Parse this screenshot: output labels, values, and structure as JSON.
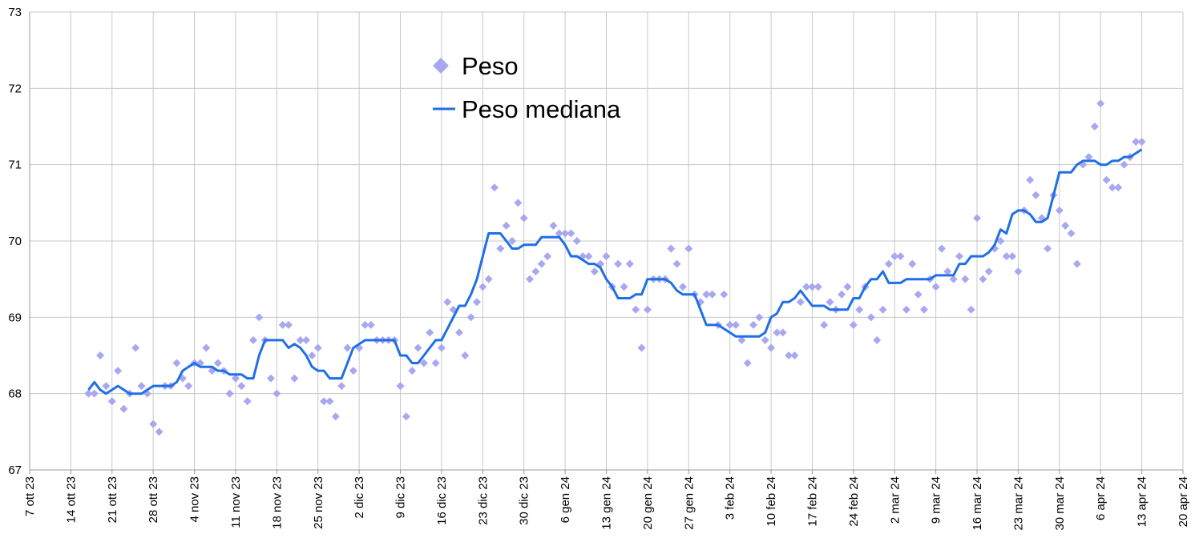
{
  "chart_data": {
    "type": "combo",
    "x": [
      "2023-10-17",
      "2023-10-18",
      "2023-10-19",
      "2023-10-20",
      "2023-10-21",
      "2023-10-22",
      "2023-10-23",
      "2023-10-24",
      "2023-10-25",
      "2023-10-26",
      "2023-10-27",
      "2023-10-28",
      "2023-10-29",
      "2023-10-30",
      "2023-10-31",
      "2023-11-01",
      "2023-11-02",
      "2023-11-03",
      "2023-11-04",
      "2023-11-05",
      "2023-11-06",
      "2023-11-07",
      "2023-11-08",
      "2023-11-09",
      "2023-11-10",
      "2023-11-11",
      "2023-11-12",
      "2023-11-13",
      "2023-11-14",
      "2023-11-15",
      "2023-11-16",
      "2023-11-17",
      "2023-11-18",
      "2023-11-19",
      "2023-11-20",
      "2023-11-21",
      "2023-11-22",
      "2023-11-23",
      "2023-11-24",
      "2023-11-25",
      "2023-11-26",
      "2023-11-27",
      "2023-11-28",
      "2023-11-29",
      "2023-11-30",
      "2023-12-01",
      "2023-12-02",
      "2023-12-03",
      "2023-12-04",
      "2023-12-05",
      "2023-12-06",
      "2023-12-07",
      "2023-12-08",
      "2023-12-09",
      "2023-12-10",
      "2023-12-11",
      "2023-12-12",
      "2023-12-13",
      "2023-12-14",
      "2023-12-15",
      "2023-12-16",
      "2023-12-17",
      "2023-12-18",
      "2023-12-19",
      "2023-12-20",
      "2023-12-21",
      "2023-12-22",
      "2023-12-23",
      "2023-12-24",
      "2023-12-25",
      "2023-12-26",
      "2023-12-27",
      "2023-12-28",
      "2023-12-29",
      "2023-12-30",
      "2023-12-31",
      "2024-01-01",
      "2024-01-02",
      "2024-01-03",
      "2024-01-04",
      "2024-01-05",
      "2024-01-06",
      "2024-01-07",
      "2024-01-08",
      "2024-01-09",
      "2024-01-10",
      "2024-01-11",
      "2024-01-12",
      "2024-01-13",
      "2024-01-14",
      "2024-01-15",
      "2024-01-16",
      "2024-01-17",
      "2024-01-18",
      "2024-01-19",
      "2024-01-20",
      "2024-01-21",
      "2024-01-22",
      "2024-01-23",
      "2024-01-24",
      "2024-01-25",
      "2024-01-26",
      "2024-01-27",
      "2024-01-28",
      "2024-01-29",
      "2024-01-30",
      "2024-01-31",
      "2024-02-01",
      "2024-02-02",
      "2024-02-03",
      "2024-02-04",
      "2024-02-05",
      "2024-02-06",
      "2024-02-07",
      "2024-02-08",
      "2024-02-09",
      "2024-02-10",
      "2024-02-11",
      "2024-02-12",
      "2024-02-13",
      "2024-02-14",
      "2024-02-15",
      "2024-02-16",
      "2024-02-17",
      "2024-02-18",
      "2024-02-19",
      "2024-02-20",
      "2024-02-21",
      "2024-02-22",
      "2024-02-23",
      "2024-02-24",
      "2024-02-25",
      "2024-02-26",
      "2024-02-27",
      "2024-02-28",
      "2024-02-29",
      "2024-03-01",
      "2024-03-02",
      "2024-03-03",
      "2024-03-04",
      "2024-03-05",
      "2024-03-06",
      "2024-03-07",
      "2024-03-08",
      "2024-03-09",
      "2024-03-10",
      "2024-03-11",
      "2024-03-12",
      "2024-03-13",
      "2024-03-14",
      "2024-03-15",
      "2024-03-16",
      "2024-03-17",
      "2024-03-18",
      "2024-03-19",
      "2024-03-20",
      "2024-03-21",
      "2024-03-22",
      "2024-03-23",
      "2024-03-24",
      "2024-03-25",
      "2024-03-26",
      "2024-03-27",
      "2024-03-28",
      "2024-03-29",
      "2024-03-30",
      "2024-03-31",
      "2024-04-01",
      "2024-04-02",
      "2024-04-03",
      "2024-04-04",
      "2024-04-05",
      "2024-04-06",
      "2024-04-07",
      "2024-04-08",
      "2024-04-09",
      "2024-04-10",
      "2024-04-11",
      "2024-04-12",
      "2024-04-13"
    ],
    "series": [
      {
        "name": "Peso",
        "type": "scatter",
        "color": "#a8a8f2",
        "values": [
          68.0,
          68.0,
          68.5,
          68.1,
          67.9,
          68.3,
          67.8,
          68.0,
          68.6,
          68.1,
          68.0,
          67.6,
          67.5,
          68.1,
          68.1,
          68.4,
          68.2,
          68.1,
          68.4,
          68.4,
          68.6,
          68.3,
          68.4,
          68.3,
          68.0,
          68.2,
          68.1,
          67.9,
          68.7,
          69.0,
          68.7,
          68.2,
          68.0,
          68.9,
          68.9,
          68.2,
          68.7,
          68.7,
          68.5,
          68.6,
          67.9,
          67.9,
          67.7,
          68.1,
          68.6,
          68.3,
          68.6,
          68.9,
          68.9,
          68.7,
          68.7,
          68.7,
          68.7,
          68.1,
          67.7,
          68.3,
          68.6,
          68.4,
          68.8,
          68.4,
          68.6,
          69.2,
          69.1,
          68.8,
          68.5,
          69.0,
          69.2,
          69.4,
          69.5,
          70.7,
          69.9,
          70.2,
          70.0,
          70.5,
          70.3,
          69.5,
          69.6,
          69.7,
          69.8,
          70.2,
          70.1,
          70.1,
          70.1,
          70.0,
          69.8,
          69.8,
          69.6,
          69.7,
          69.8,
          69.4,
          69.7,
          69.4,
          69.7,
          69.1,
          68.6,
          69.1,
          69.5,
          69.5,
          69.5,
          69.9,
          69.7,
          69.4,
          69.9,
          69.3,
          69.2,
          69.3,
          69.3,
          68.9,
          69.3,
          68.9,
          68.9,
          68.7,
          68.4,
          68.9,
          69.0,
          68.7,
          68.6,
          68.8,
          68.8,
          68.5,
          68.5,
          69.2,
          69.4,
          69.4,
          69.4,
          68.9,
          69.2,
          69.1,
          69.3,
          69.4,
          68.9,
          69.1,
          69.4,
          69.0,
          68.7,
          69.1,
          69.7,
          69.8,
          69.8,
          69.1,
          69.7,
          69.3,
          69.1,
          69.5,
          69.4,
          69.9,
          69.6,
          69.5,
          69.8,
          69.5,
          69.1,
          70.3,
          69.5,
          69.6,
          69.9,
          70.0,
          69.8,
          69.8,
          69.6,
          70.4,
          70.8,
          70.6,
          70.3,
          69.9,
          70.6,
          70.4,
          70.2,
          70.1,
          69.7,
          71.0,
          71.1,
          71.5,
          71.8,
          70.8,
          70.7,
          70.7,
          71.0,
          71.1,
          71.3,
          71.3
        ]
      },
      {
        "name": "Peso mediana",
        "type": "line",
        "color": "#1f6fe5",
        "values": [
          68.05,
          68.15,
          68.05,
          68.0,
          68.05,
          68.1,
          68.05,
          68.0,
          68.0,
          68.0,
          68.05,
          68.1,
          68.1,
          68.1,
          68.1,
          68.15,
          68.3,
          68.35,
          68.4,
          68.35,
          68.35,
          68.35,
          68.3,
          68.3,
          68.25,
          68.25,
          68.25,
          68.2,
          68.2,
          68.5,
          68.7,
          68.7,
          68.7,
          68.7,
          68.6,
          68.65,
          68.6,
          68.5,
          68.35,
          68.3,
          68.3,
          68.2,
          68.2,
          68.2,
          68.4,
          68.6,
          68.65,
          68.7,
          68.7,
          68.7,
          68.7,
          68.7,
          68.7,
          68.5,
          68.5,
          68.4,
          68.4,
          68.5,
          68.6,
          68.7,
          68.7,
          68.85,
          69.0,
          69.15,
          69.15,
          69.3,
          69.5,
          69.8,
          70.1,
          70.1,
          70.1,
          70.0,
          69.9,
          69.9,
          69.95,
          69.95,
          69.95,
          70.05,
          70.05,
          70.05,
          70.05,
          69.95,
          69.8,
          69.8,
          69.75,
          69.7,
          69.7,
          69.65,
          69.5,
          69.4,
          69.25,
          69.25,
          69.25,
          69.3,
          69.3,
          69.5,
          69.5,
          69.5,
          69.5,
          69.45,
          69.35,
          69.3,
          69.3,
          69.3,
          69.1,
          68.9,
          68.9,
          68.9,
          68.85,
          68.8,
          68.75,
          68.75,
          68.75,
          68.75,
          68.75,
          68.8,
          69.0,
          69.05,
          69.2,
          69.2,
          69.25,
          69.35,
          69.25,
          69.15,
          69.15,
          69.15,
          69.1,
          69.1,
          69.1,
          69.1,
          69.25,
          69.25,
          69.4,
          69.5,
          69.5,
          69.6,
          69.45,
          69.45,
          69.45,
          69.5,
          69.5,
          69.5,
          69.5,
          69.5,
          69.55,
          69.55,
          69.55,
          69.55,
          69.7,
          69.7,
          69.8,
          69.8,
          69.8,
          69.85,
          69.95,
          70.15,
          70.1,
          70.35,
          70.4,
          70.4,
          70.35,
          70.25,
          70.25,
          70.3,
          70.6,
          70.9,
          70.9,
          70.9,
          71.0,
          71.05,
          71.05,
          71.05,
          71.0,
          71.0,
          71.05,
          71.05,
          71.1,
          71.1,
          71.15,
          71.2
        ]
      }
    ],
    "xlim": [
      "2023-10-07",
      "2024-04-20"
    ],
    "xticks": [
      {
        "value": "2023-10-07",
        "label": "7 ott 23"
      },
      {
        "value": "2023-10-14",
        "label": "14 ott 23"
      },
      {
        "value": "2023-10-21",
        "label": "21 ott 23"
      },
      {
        "value": "2023-10-28",
        "label": "28 ott 23"
      },
      {
        "value": "2023-11-04",
        "label": "4 nov 23"
      },
      {
        "value": "2023-11-11",
        "label": "11 nov 23"
      },
      {
        "value": "2023-11-18",
        "label": "18 nov 23"
      },
      {
        "value": "2023-11-25",
        "label": "25 nov 23"
      },
      {
        "value": "2023-12-02",
        "label": "2 dic 23"
      },
      {
        "value": "2023-12-09",
        "label": "9 dic 23"
      },
      {
        "value": "2023-12-16",
        "label": "16 dic 23"
      },
      {
        "value": "2023-12-23",
        "label": "23 dic 23"
      },
      {
        "value": "2023-12-30",
        "label": "30 dic 23"
      },
      {
        "value": "2024-01-06",
        "label": "6 gen 24"
      },
      {
        "value": "2024-01-13",
        "label": "13 gen 24"
      },
      {
        "value": "2024-01-20",
        "label": "20 gen 24"
      },
      {
        "value": "2024-01-27",
        "label": "27 gen 24"
      },
      {
        "value": "2024-02-03",
        "label": "3 feb 24"
      },
      {
        "value": "2024-02-10",
        "label": "10 feb 24"
      },
      {
        "value": "2024-02-17",
        "label": "17 feb 24"
      },
      {
        "value": "2024-02-24",
        "label": "24 feb 24"
      },
      {
        "value": "2024-03-02",
        "label": "2 mar 24"
      },
      {
        "value": "2024-03-09",
        "label": "9 mar 24"
      },
      {
        "value": "2024-03-16",
        "label": "16 mar 24"
      },
      {
        "value": "2024-03-23",
        "label": "23 mar 24"
      },
      {
        "value": "2024-03-30",
        "label": "30 mar 24"
      },
      {
        "value": "2024-04-06",
        "label": "6 apr 24"
      },
      {
        "value": "2024-04-13",
        "label": "13 apr 24"
      },
      {
        "value": "2024-04-20",
        "label": "20 apr 24"
      }
    ],
    "ylim": [
      67,
      73
    ],
    "yticks": [
      67,
      68,
      69,
      70,
      71,
      72,
      73
    ],
    "grid": true,
    "legend": "top"
  }
}
